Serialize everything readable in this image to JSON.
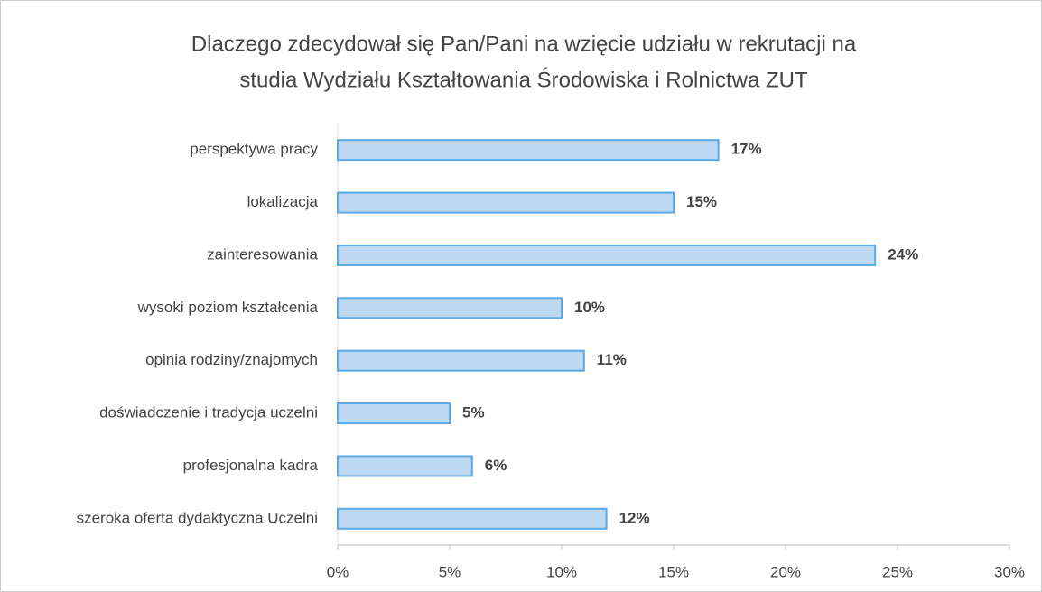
{
  "chart_data": {
    "type": "bar",
    "orientation": "horizontal",
    "title": [
      "Dlaczego zdecydował się Pan/Pani na wzięcie udziału w rekrutacji na",
      "studia Wydziału Kształtowania Środowiska i Rolnictwa ZUT"
    ],
    "categories": [
      "perspektywa pracy",
      "lokalizacja",
      "zainteresowania",
      "wysoki poziom kształcenia",
      "opinia rodziny/znajomych",
      "doświadczenie i tradycja uczelni",
      "profesjonalna kadra",
      "szeroka oferta dydaktyczna Uczelni"
    ],
    "values": [
      17,
      15,
      24,
      10,
      11,
      5,
      6,
      12
    ],
    "value_labels": [
      "17%",
      "15%",
      "24%",
      "10%",
      "11%",
      "5%",
      "6%",
      "12%"
    ],
    "color": "#bdd9f2",
    "edge_color": "#5aa9e6",
    "xlim": [
      0,
      30
    ],
    "xticks": [
      {
        "value": 0,
        "label": "0%"
      },
      {
        "value": 5,
        "label": "5%"
      },
      {
        "value": 10,
        "label": "10%"
      },
      {
        "value": 15,
        "label": "15%"
      },
      {
        "value": 20,
        "label": "20%"
      },
      {
        "value": 25,
        "label": "25%"
      },
      {
        "value": 30,
        "label": "30%"
      }
    ]
  }
}
